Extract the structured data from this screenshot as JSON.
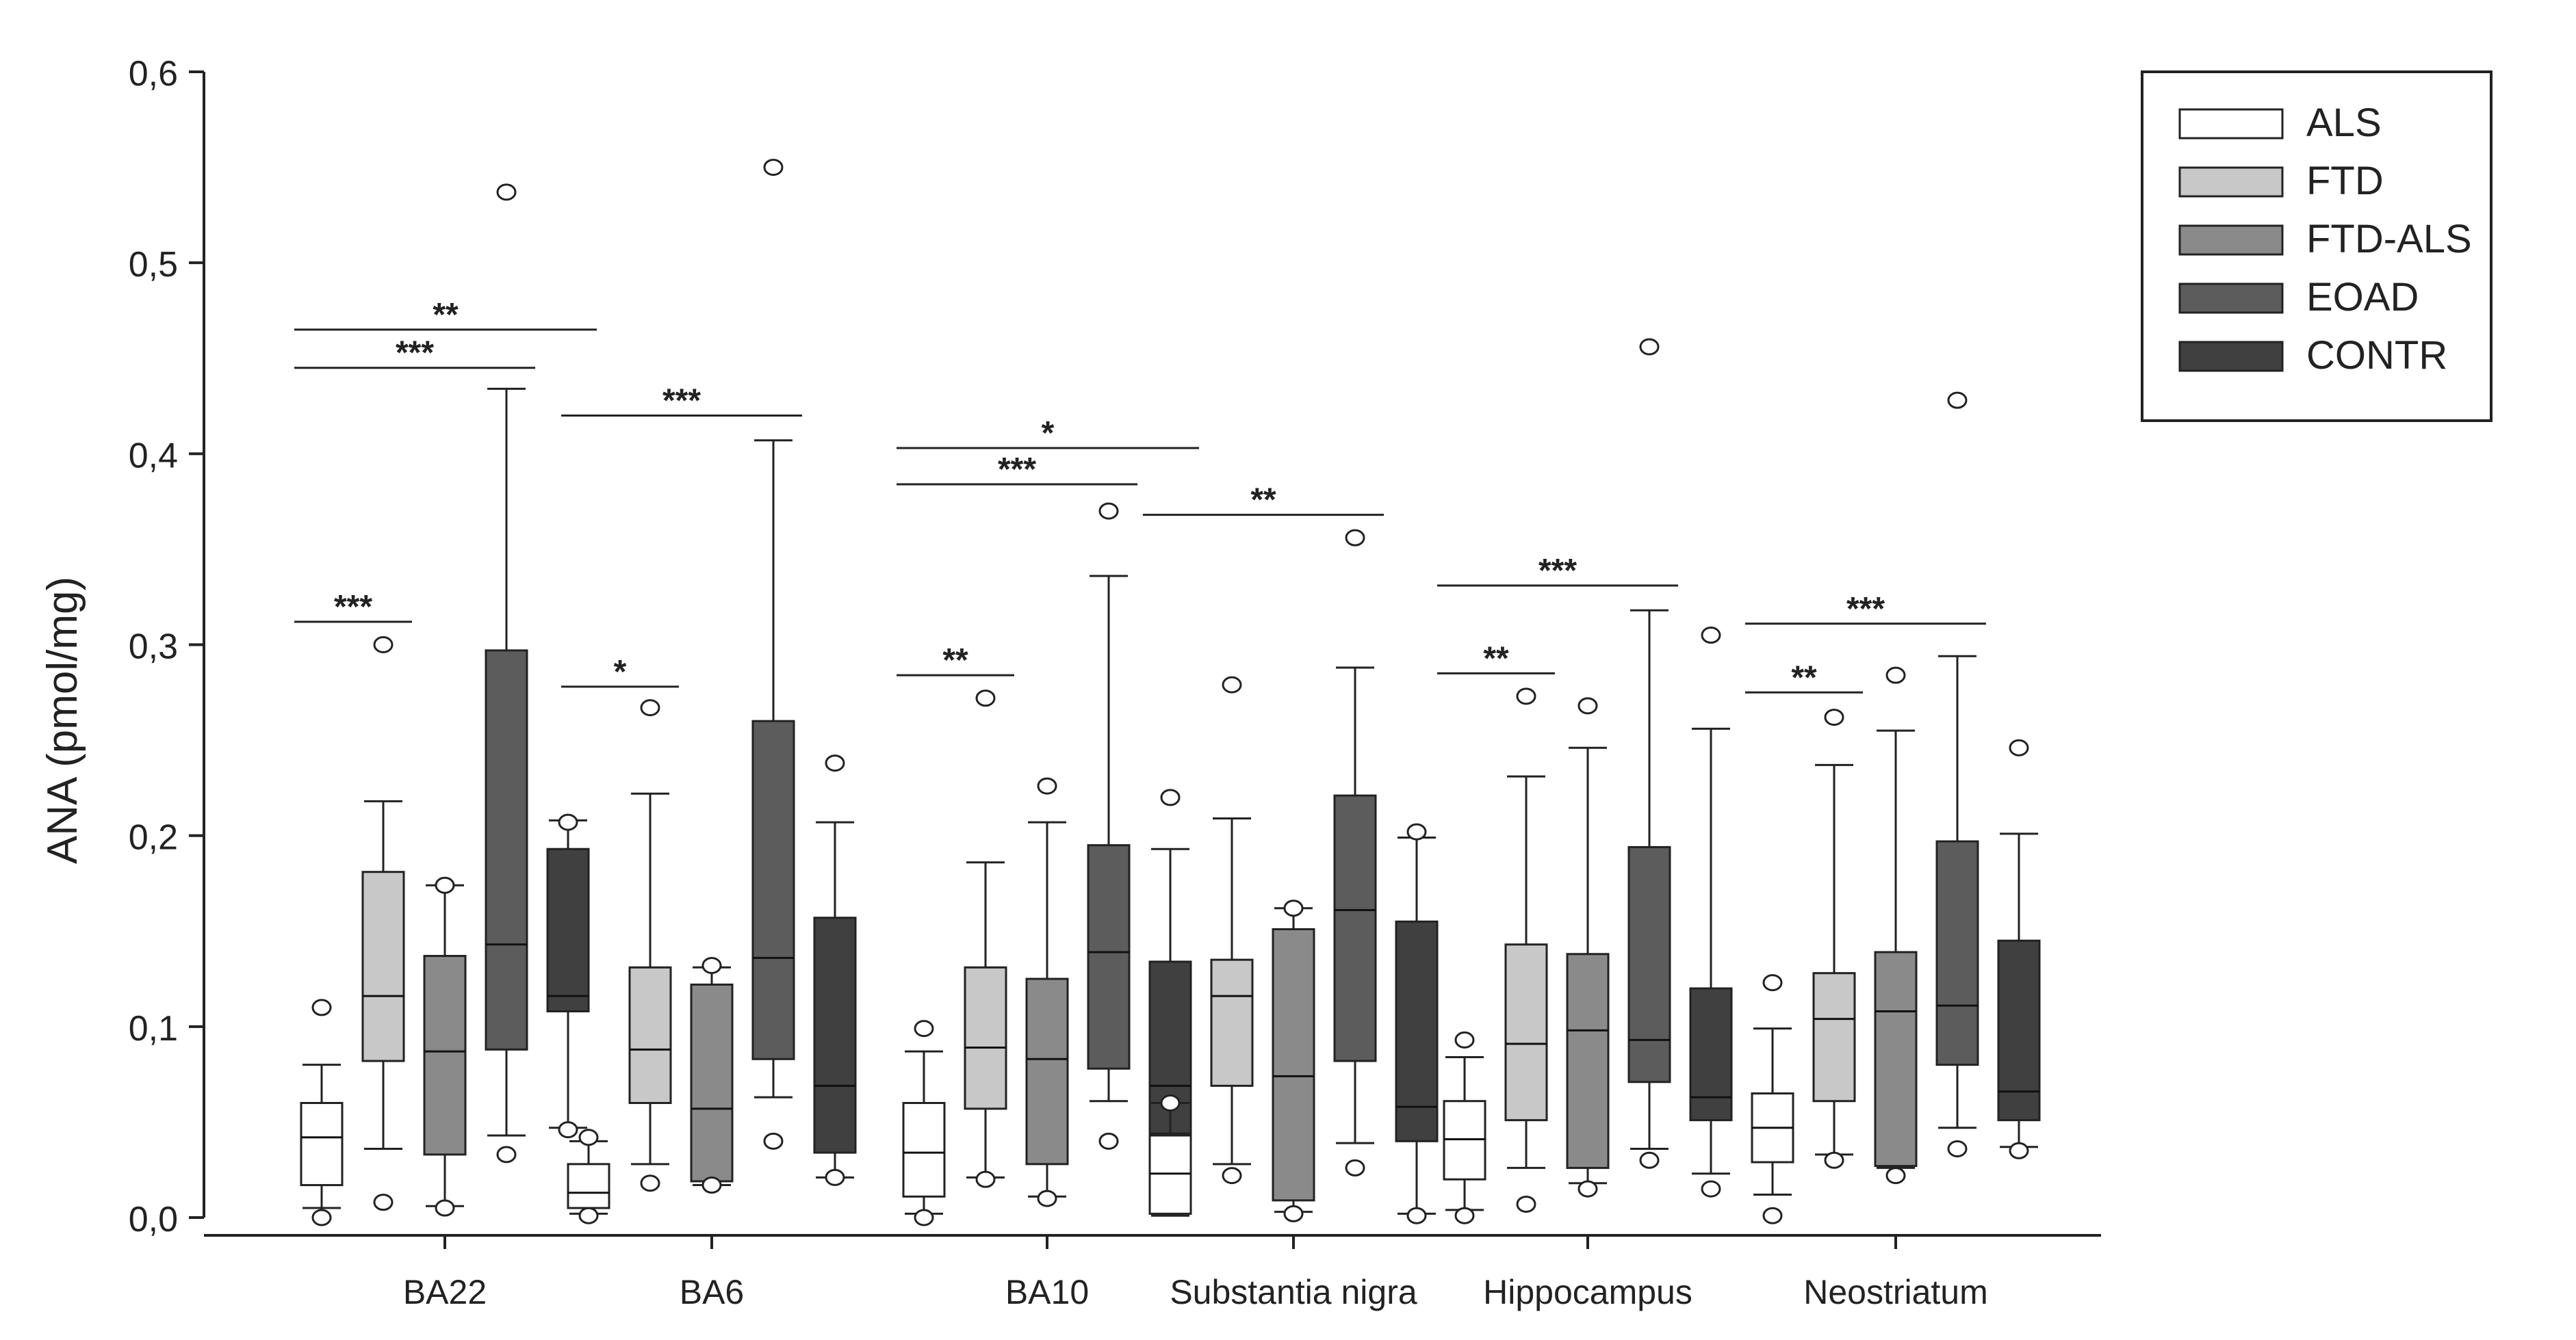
{
  "chart_data": {
    "type": "boxplot",
    "ylabel": "ANA (pmol/mg)",
    "ylim": [
      0,
      0.6
    ],
    "yticks": [
      "0,0",
      "0,1",
      "0,2",
      "0,3",
      "0,4",
      "0,5",
      "0,6"
    ],
    "ytick_values": [
      0,
      0.1,
      0.2,
      0.3,
      0.4,
      0.5,
      0.6
    ],
    "categories": [
      "BA22",
      "BA6",
      "BA10",
      "Substantia nigra",
      "Hippocampus",
      "Neostriatum"
    ],
    "legend": {
      "position": "top-right",
      "entries": [
        {
          "label": "ALS",
          "color": "#ffffff"
        },
        {
          "label": "FTD",
          "color": "#c8c8c8"
        },
        {
          "label": "FTD-ALS",
          "color": "#8a8a8a"
        },
        {
          "label": "EOAD",
          "color": "#5c5c5c"
        },
        {
          "label": "CONTR",
          "color": "#404040"
        }
      ]
    },
    "groups": [
      {
        "category": "BA22",
        "boxes": [
          {
            "series": "ALS",
            "whisker_low": 0.005,
            "q1": 0.017,
            "median": 0.042,
            "q3": 0.06,
            "whisker_high": 0.08,
            "outliers": [
              0.11,
              0.0
            ]
          },
          {
            "series": "FTD",
            "whisker_low": 0.036,
            "q1": 0.082,
            "median": 0.116,
            "q3": 0.181,
            "whisker_high": 0.218,
            "outliers": [
              0.3,
              0.008
            ]
          },
          {
            "series": "FTD-ALS",
            "whisker_low": 0.006,
            "q1": 0.033,
            "median": 0.087,
            "q3": 0.137,
            "whisker_high": 0.174,
            "outliers": [
              0.174,
              0.005
            ]
          },
          {
            "series": "EOAD",
            "whisker_low": 0.043,
            "q1": 0.088,
            "median": 0.143,
            "q3": 0.297,
            "whisker_high": 0.434,
            "outliers": [
              0.537,
              0.033
            ]
          },
          {
            "series": "CONTR",
            "whisker_low": 0.047,
            "q1": 0.108,
            "median": 0.116,
            "q3": 0.193,
            "whisker_high": 0.208,
            "outliers": [
              0.207,
              0.046
            ]
          }
        ]
      },
      {
        "category": "BA6",
        "boxes": [
          {
            "series": "ALS",
            "whisker_low": 0.002,
            "q1": 0.005,
            "median": 0.013,
            "q3": 0.028,
            "whisker_high": 0.04,
            "outliers": [
              0.042,
              0.001
            ]
          },
          {
            "series": "FTD",
            "whisker_low": 0.028,
            "q1": 0.06,
            "median": 0.088,
            "q3": 0.131,
            "whisker_high": 0.222,
            "outliers": [
              0.267,
              0.018
            ]
          },
          {
            "series": "FTD-ALS",
            "whisker_low": 0.017,
            "q1": 0.019,
            "median": 0.057,
            "q3": 0.122,
            "whisker_high": 0.131,
            "outliers": [
              0.132,
              0.017
            ]
          },
          {
            "series": "EOAD",
            "whisker_low": 0.063,
            "q1": 0.083,
            "median": 0.136,
            "q3": 0.26,
            "whisker_high": 0.407,
            "outliers": [
              0.55,
              0.04
            ]
          },
          {
            "series": "CONTR",
            "whisker_low": 0.021,
            "q1": 0.034,
            "median": 0.069,
            "q3": 0.157,
            "whisker_high": 0.207,
            "outliers": [
              0.238,
              0.021
            ]
          }
        ]
      },
      {
        "category": "BA10",
        "boxes": [
          {
            "series": "ALS",
            "whisker_low": 0.002,
            "q1": 0.011,
            "median": 0.034,
            "q3": 0.06,
            "whisker_high": 0.087,
            "outliers": [
              0.099,
              0.0
            ]
          },
          {
            "series": "FTD",
            "whisker_low": 0.021,
            "q1": 0.057,
            "median": 0.089,
            "q3": 0.131,
            "whisker_high": 0.186,
            "outliers": [
              0.272,
              0.02
            ]
          },
          {
            "series": "FTD-ALS",
            "whisker_low": 0.011,
            "q1": 0.028,
            "median": 0.083,
            "q3": 0.125,
            "whisker_high": 0.207,
            "outliers": [
              0.226,
              0.01
            ]
          },
          {
            "series": "EOAD",
            "whisker_low": 0.061,
            "q1": 0.078,
            "median": 0.139,
            "q3": 0.195,
            "whisker_high": 0.336,
            "outliers": [
              0.37,
              0.04
            ]
          },
          {
            "series": "CONTR",
            "whisker_low": 0.029,
            "q1": 0.044,
            "median": 0.069,
            "q3": 0.134,
            "whisker_high": 0.193,
            "outliers": [
              0.22,
              0.022
            ]
          }
        ]
      },
      {
        "category": "Substantia nigra",
        "boxes": [
          {
            "series": "ALS",
            "whisker_low": 0.001,
            "q1": 0.002,
            "median": 0.023,
            "q3": 0.043,
            "whisker_high": 0.06,
            "outliers": [
              0.06
            ]
          },
          {
            "series": "FTD",
            "whisker_low": 0.028,
            "q1": 0.069,
            "median": 0.116,
            "q3": 0.135,
            "whisker_high": 0.209,
            "outliers": [
              0.279,
              0.022
            ]
          },
          {
            "series": "FTD-ALS",
            "whisker_low": 0.003,
            "q1": 0.009,
            "median": 0.074,
            "q3": 0.151,
            "whisker_high": 0.162,
            "outliers": [
              0.162,
              0.002
            ]
          },
          {
            "series": "EOAD",
            "whisker_low": 0.039,
            "q1": 0.082,
            "median": 0.161,
            "q3": 0.221,
            "whisker_high": 0.288,
            "outliers": [
              0.356,
              0.026
            ]
          },
          {
            "series": "CONTR",
            "whisker_low": 0.002,
            "q1": 0.04,
            "median": 0.058,
            "q3": 0.155,
            "whisker_high": 0.199,
            "outliers": [
              0.202,
              0.001
            ]
          }
        ]
      },
      {
        "category": "Hippocampus",
        "boxes": [
          {
            "series": "ALS",
            "whisker_low": 0.004,
            "q1": 0.02,
            "median": 0.041,
            "q3": 0.061,
            "whisker_high": 0.084,
            "outliers": [
              0.093,
              0.001
            ]
          },
          {
            "series": "FTD",
            "whisker_low": 0.026,
            "q1": 0.051,
            "median": 0.091,
            "q3": 0.143,
            "whisker_high": 0.231,
            "outliers": [
              0.273,
              0.007
            ]
          },
          {
            "series": "FTD-ALS",
            "whisker_low": 0.018,
            "q1": 0.026,
            "median": 0.098,
            "q3": 0.138,
            "whisker_high": 0.246,
            "outliers": [
              0.268,
              0.015
            ]
          },
          {
            "series": "EOAD",
            "whisker_low": 0.036,
            "q1": 0.071,
            "median": 0.093,
            "q3": 0.194,
            "whisker_high": 0.318,
            "outliers": [
              0.456,
              0.03
            ]
          },
          {
            "series": "CONTR",
            "whisker_low": 0.023,
            "q1": 0.051,
            "median": 0.063,
            "q3": 0.12,
            "whisker_high": 0.256,
            "outliers": [
              0.305,
              0.015
            ]
          }
        ]
      },
      {
        "category": "Neostriatum",
        "boxes": [
          {
            "series": "ALS",
            "whisker_low": 0.012,
            "q1": 0.029,
            "median": 0.047,
            "q3": 0.065,
            "whisker_high": 0.099,
            "outliers": [
              0.123,
              0.001
            ]
          },
          {
            "series": "FTD",
            "whisker_low": 0.033,
            "q1": 0.061,
            "median": 0.104,
            "q3": 0.128,
            "whisker_high": 0.237,
            "outliers": [
              0.262,
              0.03
            ]
          },
          {
            "series": "FTD-ALS",
            "whisker_low": 0.026,
            "q1": 0.027,
            "median": 0.108,
            "q3": 0.139,
            "whisker_high": 0.255,
            "outliers": [
              0.284,
              0.022
            ]
          },
          {
            "series": "EOAD",
            "whisker_low": 0.047,
            "q1": 0.08,
            "median": 0.111,
            "q3": 0.197,
            "whisker_high": 0.294,
            "outliers": [
              0.428,
              0.036
            ]
          },
          {
            "series": "CONTR",
            "whisker_low": 0.037,
            "q1": 0.051,
            "median": 0.066,
            "q3": 0.145,
            "whisker_high": 0.201,
            "outliers": [
              0.246,
              0.035
            ]
          }
        ]
      }
    ],
    "significance": [
      {
        "category": "BA22",
        "from": "ALS",
        "to": "CONTR",
        "label": "**",
        "y": 0.465
      },
      {
        "category": "BA22",
        "from": "ALS",
        "to": "EOAD",
        "label": "***",
        "y": 0.445
      },
      {
        "category": "BA22",
        "from": "ALS",
        "to": "FTD",
        "label": "***",
        "y": 0.312
      },
      {
        "category": "BA6",
        "from": "ALS",
        "to": "EOAD",
        "label": "***",
        "y": 0.42
      },
      {
        "category": "BA6",
        "from": "ALS",
        "to": "FTD",
        "label": "*",
        "y": 0.278
      },
      {
        "category": "BA10",
        "from": "ALS",
        "to": "CONTR",
        "label": "*",
        "y": 0.403
      },
      {
        "category": "BA10",
        "from": "ALS",
        "to": "EOAD",
        "label": "***",
        "y": 0.384
      },
      {
        "category": "BA10",
        "from": "ALS",
        "to": "FTD",
        "label": "**",
        "y": 0.284
      },
      {
        "category": "Substantia nigra",
        "from": "ALS",
        "to": "EOAD",
        "label": "**",
        "y": 0.368
      },
      {
        "category": "Hippocampus",
        "from": "ALS",
        "to": "EOAD",
        "label": "***",
        "y": 0.331
      },
      {
        "category": "Hippocampus",
        "from": "ALS",
        "to": "FTD",
        "label": "**",
        "y": 0.285
      },
      {
        "category": "Neostriatum",
        "from": "ALS",
        "to": "EOAD",
        "label": "***",
        "y": 0.311
      },
      {
        "category": "Neostriatum",
        "from": "ALS",
        "to": "FTD",
        "label": "**",
        "y": 0.275
      }
    ]
  }
}
